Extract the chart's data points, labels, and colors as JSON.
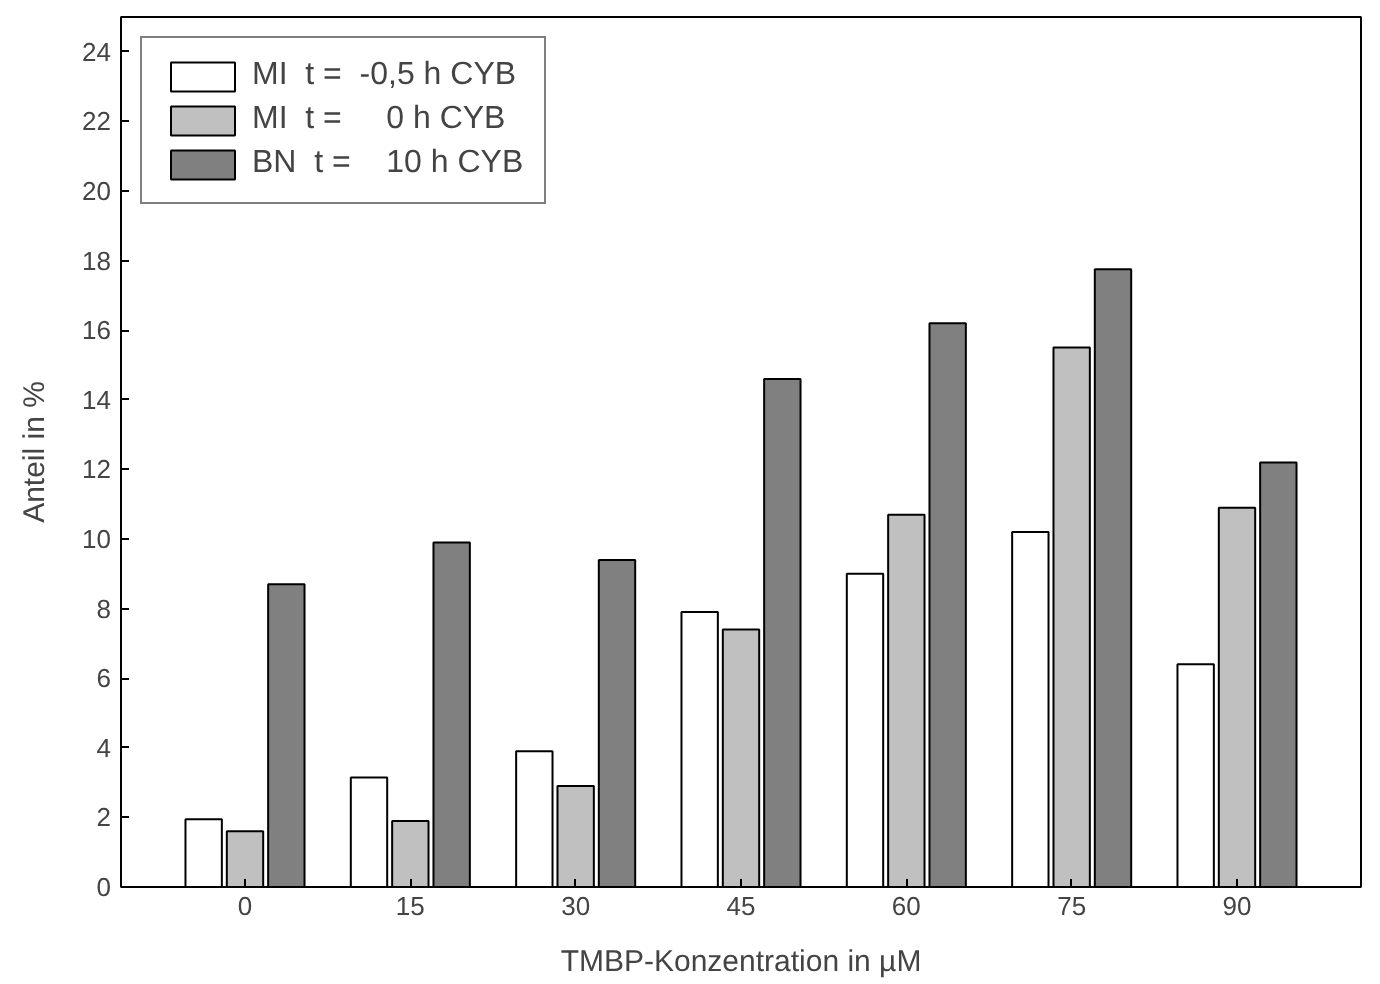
{
  "chart_data": {
    "type": "bar",
    "xlabel": "TMBP-Konzentration in µM",
    "ylabel": "Anteil in %",
    "categories": [
      "0",
      "15",
      "30",
      "45",
      "60",
      "75",
      "90"
    ],
    "series": [
      {
        "name": "MI  t =  -0,5 h CYB",
        "color": "#ffffff",
        "values": [
          1.95,
          3.15,
          3.9,
          7.9,
          9.0,
          10.2,
          6.4
        ]
      },
      {
        "name": "MI  t =     0 h CYB",
        "color": "#c0c0c0",
        "values": [
          1.6,
          1.9,
          2.9,
          7.4,
          10.7,
          15.5,
          10.9
        ]
      },
      {
        "name": "BN  t =    10 h CYB",
        "color": "#808080",
        "values": [
          8.7,
          9.9,
          9.4,
          14.6,
          16.2,
          17.75,
          12.2
        ]
      }
    ],
    "ylim": [
      0,
      25
    ],
    "yticks": [
      0,
      2,
      4,
      6,
      8,
      10,
      12,
      14,
      16,
      18,
      20,
      22,
      24
    ],
    "grid": false,
    "legend": "top left"
  }
}
